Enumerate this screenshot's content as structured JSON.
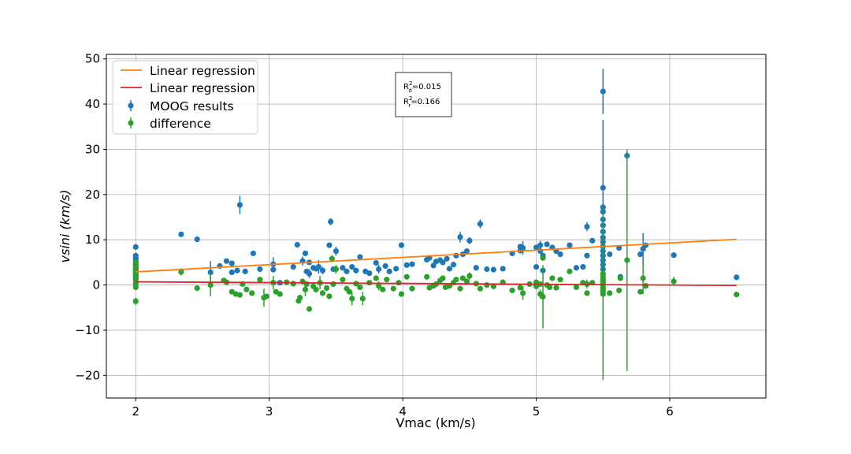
{
  "chart_data": {
    "type": "scatter",
    "title": "",
    "xlabel": "Vmac (km/s)",
    "ylabel": "vsini (km/s)",
    "xlim": [
      1.78,
      6.72
    ],
    "ylim": [
      -25,
      51
    ],
    "xticks": [
      2,
      3,
      4,
      5,
      6
    ],
    "yticks": [
      -20,
      -10,
      0,
      10,
      20,
      30,
      40,
      50
    ],
    "grid": true,
    "legend_position": "top-left",
    "annotation": {
      "line1": {
        "base": "R",
        "sup": "2",
        "sub": "d",
        "value": "=0.015"
      },
      "line2": {
        "base": "R",
        "sup": "2",
        "sub": "r",
        "value": "=0.166"
      }
    },
    "series": [
      {
        "name": "Linear regression",
        "kind": "line",
        "color": "#ff7f0e",
        "x": [
          2.0,
          6.5
        ],
        "y": [
          2.9,
          10.1
        ]
      },
      {
        "name": "Linear regression",
        "kind": "line",
        "color": "#d62728",
        "x": [
          2.0,
          6.5
        ],
        "y": [
          0.7,
          -0.1
        ]
      },
      {
        "name": "MOOG results",
        "kind": "errorbar",
        "color": "#1f77b4",
        "points": [
          [
            2.0,
            8.4,
            0.6
          ],
          [
            2.0,
            6.5,
            0.5
          ],
          [
            2.0,
            6.0,
            0.5
          ],
          [
            2.0,
            5.5,
            0.5
          ],
          [
            2.0,
            5.0,
            0.5
          ],
          [
            2.0,
            4.6,
            0.5
          ],
          [
            2.0,
            4.2,
            0.5
          ],
          [
            2.0,
            3.8,
            0.5
          ],
          [
            2.0,
            3.4,
            0.5
          ],
          [
            2.0,
            3.0,
            0.5
          ],
          [
            2.0,
            2.6,
            0.5
          ],
          [
            2.0,
            2.2,
            0.5
          ],
          [
            2.0,
            1.8,
            0.5
          ],
          [
            2.0,
            1.4,
            0.5
          ],
          [
            2.34,
            11.2,
            0.4
          ],
          [
            2.46,
            10.1,
            0.4
          ],
          [
            2.56,
            2.8,
            2.5
          ],
          [
            2.63,
            4.2,
            0.5
          ],
          [
            2.68,
            5.3,
            0.5
          ],
          [
            2.72,
            4.8,
            0.5
          ],
          [
            2.72,
            2.8,
            0.5
          ],
          [
            2.76,
            3.2,
            0.5
          ],
          [
            2.78,
            17.7,
            2.0
          ],
          [
            2.82,
            3.0,
            0.5
          ],
          [
            2.88,
            7.0,
            0.5
          ],
          [
            2.93,
            3.5,
            0.5
          ],
          [
            3.03,
            4.6,
            1.5
          ],
          [
            3.03,
            3.4,
            0.5
          ],
          [
            3.08,
            0.5,
            0.5
          ],
          [
            3.18,
            4.0,
            0.5
          ],
          [
            3.21,
            8.9,
            0.5
          ],
          [
            3.25,
            5.3,
            1.0
          ],
          [
            3.27,
            7.0,
            0.5
          ],
          [
            3.28,
            3.0,
            0.5
          ],
          [
            3.3,
            5.0,
            0.5
          ],
          [
            3.3,
            2.5,
            1.0
          ],
          [
            3.33,
            3.8,
            0.5
          ],
          [
            3.35,
            3.6,
            0.5
          ],
          [
            3.37,
            4.0,
            1.5
          ],
          [
            3.4,
            3.2,
            0.8
          ],
          [
            3.45,
            8.8,
            0.5
          ],
          [
            3.46,
            14.0,
            0.8
          ],
          [
            3.48,
            3.5,
            0.5
          ],
          [
            3.5,
            7.5,
            1.0
          ],
          [
            3.55,
            3.8,
            0.5
          ],
          [
            3.58,
            3.0,
            0.5
          ],
          [
            3.62,
            4.0,
            0.5
          ],
          [
            3.65,
            3.2,
            0.5
          ],
          [
            3.68,
            6.2,
            0.5
          ],
          [
            3.72,
            3.0,
            0.5
          ],
          [
            3.75,
            2.6,
            0.5
          ],
          [
            3.8,
            4.9,
            0.5
          ],
          [
            3.82,
            3.5,
            1.0
          ],
          [
            3.87,
            4.2,
            0.5
          ],
          [
            3.9,
            3.0,
            0.5
          ],
          [
            3.95,
            3.6,
            0.5
          ],
          [
            3.99,
            8.8,
            0.5
          ],
          [
            4.03,
            4.4,
            0.5
          ],
          [
            4.07,
            4.6,
            0.5
          ],
          [
            4.18,
            5.6,
            0.5
          ],
          [
            4.2,
            6.0,
            0.5
          ],
          [
            4.23,
            4.3,
            0.5
          ],
          [
            4.25,
            5.2,
            0.5
          ],
          [
            4.28,
            5.5,
            0.5
          ],
          [
            4.3,
            5.0,
            0.5
          ],
          [
            4.33,
            5.8,
            0.5
          ],
          [
            4.35,
            3.6,
            0.5
          ],
          [
            4.38,
            4.5,
            0.5
          ],
          [
            4.4,
            6.5,
            0.5
          ],
          [
            4.43,
            10.6,
            1.2
          ],
          [
            4.45,
            6.8,
            0.5
          ],
          [
            4.48,
            7.5,
            0.5
          ],
          [
            4.5,
            9.8,
            0.8
          ],
          [
            4.55,
            3.8,
            0.5
          ],
          [
            4.58,
            13.5,
            1.0
          ],
          [
            4.63,
            3.5,
            0.5
          ],
          [
            4.68,
            3.4,
            0.5
          ],
          [
            4.75,
            3.6,
            0.5
          ],
          [
            4.82,
            7.0,
            0.6
          ],
          [
            4.88,
            8.5,
            0.6
          ],
          [
            4.88,
            7.6,
            0.6
          ],
          [
            4.9,
            8.2,
            1.5
          ],
          [
            5.0,
            8.3,
            0.5
          ],
          [
            5.0,
            4.0,
            0.5
          ],
          [
            5.03,
            8.8,
            1.0
          ],
          [
            5.03,
            7.5,
            0.5
          ],
          [
            5.05,
            6.5,
            0.5
          ],
          [
            5.05,
            3.2,
            0.5
          ],
          [
            5.08,
            9.0,
            0.5
          ],
          [
            5.12,
            8.3,
            0.5
          ],
          [
            5.15,
            7.5,
            0.5
          ],
          [
            5.18,
            6.8,
            0.5
          ],
          [
            5.25,
            8.8,
            0.5
          ],
          [
            5.3,
            3.8,
            0.5
          ],
          [
            5.35,
            4.0,
            0.5
          ],
          [
            5.38,
            6.5,
            0.5
          ],
          [
            5.38,
            12.9,
            1.0
          ],
          [
            5.42,
            9.8,
            0.5
          ],
          [
            5.5,
            42.8,
            5.0
          ],
          [
            5.5,
            21.5,
            15.0
          ],
          [
            5.5,
            17.2,
            1.0
          ],
          [
            5.5,
            16.2,
            1.0
          ],
          [
            5.5,
            14.5,
            1.0
          ],
          [
            5.5,
            13.2,
            1.0
          ],
          [
            5.5,
            11.8,
            1.0
          ],
          [
            5.5,
            10.5,
            1.0
          ],
          [
            5.5,
            9.5,
            1.0
          ],
          [
            5.5,
            8.5,
            1.0
          ],
          [
            5.5,
            7.5,
            1.0
          ],
          [
            5.5,
            6.5,
            1.0
          ],
          [
            5.5,
            5.5,
            1.0
          ],
          [
            5.5,
            4.5,
            1.0
          ],
          [
            5.5,
            3.5,
            1.0
          ],
          [
            5.55,
            6.8,
            0.5
          ],
          [
            5.62,
            8.2,
            0.5
          ],
          [
            5.63,
            1.8,
            0.5
          ],
          [
            5.68,
            28.6,
            1.0
          ],
          [
            5.78,
            6.8,
            0.5
          ],
          [
            5.8,
            8.0,
            3.5
          ],
          [
            5.82,
            8.8,
            0.5
          ],
          [
            6.03,
            6.6,
            0.5
          ],
          [
            6.5,
            1.7,
            0.4
          ]
        ]
      },
      {
        "name": "difference",
        "kind": "errorbar",
        "color": "#2ca02c",
        "points": [
          [
            2.0,
            -3.6,
            0.8
          ],
          [
            2.0,
            -0.5,
            0.5
          ],
          [
            2.0,
            0.2,
            0.5
          ],
          [
            2.0,
            0.8,
            0.5
          ],
          [
            2.0,
            1.4,
            0.5
          ],
          [
            2.0,
            2.0,
            0.5
          ],
          [
            2.0,
            2.6,
            0.5
          ],
          [
            2.0,
            3.2,
            0.5
          ],
          [
            2.0,
            3.8,
            0.5
          ],
          [
            2.0,
            4.4,
            0.5
          ],
          [
            2.0,
            5.0,
            0.5
          ],
          [
            2.34,
            2.9,
            0.8
          ],
          [
            2.46,
            -0.7,
            0.4
          ],
          [
            2.56,
            0.0,
            2.5
          ],
          [
            2.66,
            1.0,
            0.5
          ],
          [
            2.68,
            0.6,
            0.5
          ],
          [
            2.72,
            -1.5,
            0.5
          ],
          [
            2.75,
            -2.0,
            0.5
          ],
          [
            2.78,
            -2.2,
            0.5
          ],
          [
            2.8,
            0.2,
            0.5
          ],
          [
            2.83,
            -1.0,
            0.5
          ],
          [
            2.87,
            -1.8,
            0.5
          ],
          [
            2.93,
            1.2,
            0.5
          ],
          [
            2.96,
            -2.8,
            2.0
          ],
          [
            2.98,
            -2.5,
            0.5
          ],
          [
            3.03,
            0.5,
            1.5
          ],
          [
            3.05,
            -1.5,
            0.5
          ],
          [
            3.08,
            -2.0,
            0.5
          ],
          [
            3.13,
            0.6,
            0.5
          ],
          [
            3.18,
            0.3,
            0.5
          ],
          [
            3.22,
            -3.5,
            0.5
          ],
          [
            3.23,
            -2.8,
            0.5
          ],
          [
            3.25,
            0.8,
            0.5
          ],
          [
            3.27,
            -1.0,
            1.5
          ],
          [
            3.28,
            0.2,
            0.5
          ],
          [
            3.3,
            -5.3,
            0.5
          ],
          [
            3.33,
            -0.3,
            0.5
          ],
          [
            3.35,
            -1.0,
            0.5
          ],
          [
            3.38,
            0.5,
            1.5
          ],
          [
            3.4,
            -1.8,
            0.5
          ],
          [
            3.43,
            -0.7,
            0.5
          ],
          [
            3.45,
            -2.5,
            0.5
          ],
          [
            3.47,
            5.8,
            0.8
          ],
          [
            3.48,
            0.2,
            0.5
          ],
          [
            3.5,
            3.5,
            1.0
          ],
          [
            3.55,
            1.2,
            0.5
          ],
          [
            3.58,
            -0.8,
            0.5
          ],
          [
            3.6,
            -1.5,
            0.5
          ],
          [
            3.62,
            -3.0,
            1.5
          ],
          [
            3.65,
            0.3,
            0.5
          ],
          [
            3.68,
            -0.5,
            0.5
          ],
          [
            3.7,
            -3.0,
            1.5
          ],
          [
            3.75,
            0.5,
            0.5
          ],
          [
            3.8,
            1.5,
            0.5
          ],
          [
            3.82,
            -0.2,
            1.0
          ],
          [
            3.85,
            -1.0,
            0.5
          ],
          [
            3.88,
            1.2,
            0.5
          ],
          [
            3.93,
            -0.8,
            0.5
          ],
          [
            3.97,
            0.5,
            0.5
          ],
          [
            3.99,
            -2.0,
            0.5
          ],
          [
            4.03,
            1.8,
            0.5
          ],
          [
            4.07,
            -0.8,
            0.5
          ],
          [
            4.18,
            1.8,
            0.5
          ],
          [
            4.2,
            -0.6,
            0.5
          ],
          [
            4.23,
            -0.2,
            0.5
          ],
          [
            4.25,
            0.2,
            0.5
          ],
          [
            4.28,
            1.0,
            0.5
          ],
          [
            4.3,
            1.5,
            0.5
          ],
          [
            4.32,
            -0.5,
            0.5
          ],
          [
            4.35,
            -0.2,
            0.5
          ],
          [
            4.38,
            0.5,
            0.5
          ],
          [
            4.4,
            1.2,
            0.5
          ],
          [
            4.43,
            -0.8,
            0.5
          ],
          [
            4.45,
            1.5,
            0.5
          ],
          [
            4.48,
            0.8,
            0.5
          ],
          [
            4.5,
            2.0,
            0.8
          ],
          [
            4.55,
            0.3,
            0.5
          ],
          [
            4.58,
            -0.8,
            0.5
          ],
          [
            4.63,
            0.0,
            0.5
          ],
          [
            4.68,
            -0.3,
            0.5
          ],
          [
            4.75,
            0.6,
            0.5
          ],
          [
            4.82,
            -1.2,
            0.6
          ],
          [
            4.88,
            -0.6,
            0.6
          ],
          [
            4.9,
            -1.8,
            1.5
          ],
          [
            4.95,
            0.2,
            0.5
          ],
          [
            5.0,
            0.6,
            0.5
          ],
          [
            5.0,
            -0.3,
            0.5
          ],
          [
            5.03,
            -2.0,
            1.0
          ],
          [
            5.03,
            0.2,
            0.5
          ],
          [
            5.05,
            6.0,
            0.5
          ],
          [
            5.05,
            -2.6,
            7.0
          ],
          [
            5.08,
            0.0,
            0.5
          ],
          [
            5.1,
            -0.5,
            0.5
          ],
          [
            5.12,
            1.5,
            0.5
          ],
          [
            5.15,
            -0.6,
            0.5
          ],
          [
            5.18,
            1.2,
            0.5
          ],
          [
            5.25,
            3.0,
            0.5
          ],
          [
            5.3,
            -0.5,
            0.5
          ],
          [
            5.35,
            0.5,
            0.5
          ],
          [
            5.38,
            -1.8,
            0.5
          ],
          [
            5.38,
            0.2,
            1.0
          ],
          [
            5.42,
            0.5,
            0.5
          ],
          [
            5.5,
            -2.0,
            19.0
          ],
          [
            5.5,
            2.5,
            14.0
          ],
          [
            5.5,
            2.0,
            1.0
          ],
          [
            5.5,
            1.5,
            1.0
          ],
          [
            5.5,
            1.0,
            1.0
          ],
          [
            5.5,
            0.5,
            1.0
          ],
          [
            5.5,
            0.0,
            1.0
          ],
          [
            5.5,
            -0.5,
            1.0
          ],
          [
            5.5,
            -1.0,
            1.0
          ],
          [
            5.5,
            -1.5,
            1.0
          ],
          [
            5.55,
            -1.8,
            0.5
          ],
          [
            5.62,
            -1.2,
            0.5
          ],
          [
            5.63,
            1.5,
            0.5
          ],
          [
            5.68,
            5.5,
            24.5
          ],
          [
            5.78,
            -1.5,
            0.5
          ],
          [
            5.8,
            1.5,
            3.5
          ],
          [
            5.82,
            -0.2,
            0.5
          ],
          [
            6.03,
            0.8,
            1.0
          ],
          [
            6.5,
            -2.1,
            0.4
          ]
        ]
      }
    ]
  }
}
